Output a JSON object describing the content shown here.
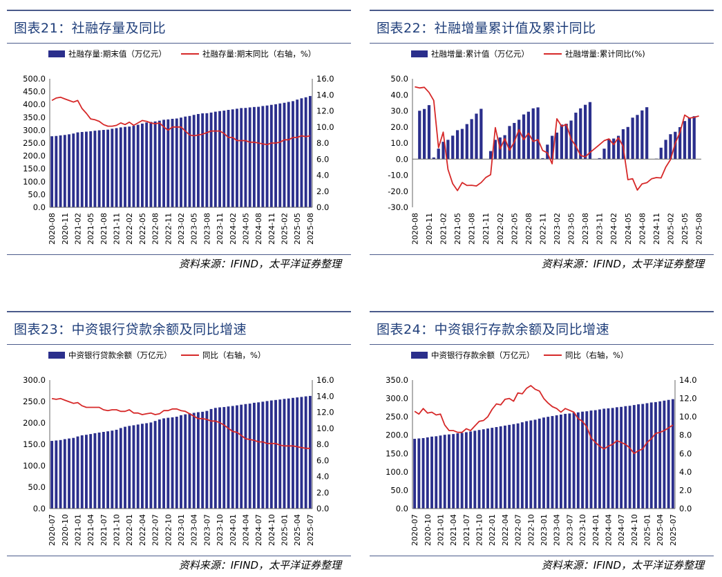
{
  "page": {
    "source_label": "资料来源：IFIND，太平洋证券整理"
  },
  "chart_data": [
    {
      "id": "fig21",
      "title": "图表21：社融存量及同比",
      "type": "bar+line",
      "legend": {
        "bar": "社融存量:期末值（万亿元）",
        "line": "社融存量:期末同比（右轴，%）"
      },
      "left_axis": {
        "min": 0,
        "max": 500,
        "step": 50,
        "decimals": 1
      },
      "right_axis": {
        "min": 0,
        "max": 16,
        "step": 2,
        "decimals": 1
      },
      "x_start": "2020-08",
      "n": 61,
      "tick_labels": [
        "2020-08",
        "2020-11",
        "2021-02",
        "2021-05",
        "2021-08",
        "2021-11",
        "2022-02",
        "2022-05",
        "2022-08",
        "2022-11",
        "2023-02",
        "2023-05",
        "2023-08",
        "2023-11",
        "2024-02",
        "2024-05",
        "2024-08",
        "2024-11",
        "2025-02",
        "2025-05",
        "2025-08"
      ],
      "bar_values": [
        276.4,
        277.6,
        279.8,
        281.5,
        284,
        287,
        291.5,
        293,
        294.3,
        296,
        298,
        299.5,
        301,
        302.1,
        305.6,
        308,
        310.8,
        312.9,
        314.1,
        317,
        321,
        325.6,
        330,
        332.1,
        334,
        337,
        340.6,
        342,
        344.2,
        345.5,
        349,
        353,
        355.3,
        359.5,
        363,
        365.5,
        366,
        368.6,
        372,
        374.3,
        376.2,
        379,
        381,
        383.5,
        386,
        386.6,
        388.6,
        390.2,
        391,
        394,
        396,
        398.6,
        401,
        404,
        406.6,
        410,
        413,
        419,
        424,
        428,
        433
      ],
      "line_values": [
        13.3,
        13.6,
        13.7,
        13.5,
        13.3,
        13.1,
        13.3,
        12.3,
        11.7,
        11,
        10.9,
        10.7,
        10.3,
        10.1,
        10.1,
        10.2,
        10.5,
        10.3,
        10.6,
        10.2,
        10.5,
        10.8,
        10.7,
        10.5,
        10.4,
        10.5,
        10,
        9.6,
        10,
        10,
        10,
        9.5,
        9,
        8.9,
        9,
        9.1,
        9.3,
        9.5,
        9.5,
        9.5,
        9.2,
        8.7,
        8.7,
        8.3,
        8.3,
        8.3,
        8.1,
        8.1,
        8,
        7.9,
        7.8,
        8,
        8,
        8.1,
        8.4,
        8.4,
        8.7,
        8.7,
        8.9,
        8.8,
        8.9
      ]
    },
    {
      "id": "fig22",
      "title": "图表22：社融增量累计值及累计同比",
      "type": "bar+line",
      "legend": {
        "bar": "社融增量:累计值（万亿元）",
        "line": "社融增量:累计同比(%)"
      },
      "left_axis": {
        "min": -30,
        "max": 50,
        "step": 10,
        "decimals": 1
      },
      "x_start": "2020-08",
      "n": 61,
      "tick_labels": [
        "2020-08",
        "2020-11",
        "2021-02",
        "2021-05",
        "2021-08",
        "2021-11",
        "2022-02",
        "2022-05",
        "2022-08",
        "2022-11",
        "2023-02",
        "2023-05",
        "2023-08",
        "2023-11",
        "2024-02",
        "2024-05",
        "2024-08",
        "2024-11",
        "2025-02",
        "2025-05",
        "2025-08"
      ],
      "bar_values": [
        0,
        30.1,
        31.2,
        33.6,
        1,
        6.5,
        10.8,
        12,
        14.6,
        18,
        18.8,
        21.8,
        24.9,
        28.3,
        31.3,
        0,
        5,
        12,
        13.5,
        14.9,
        20.6,
        22.5,
        24.5,
        27.8,
        29.5,
        31.6,
        32.2,
        0.6,
        9,
        14.5,
        16.5,
        21.5,
        22,
        24,
        28.9,
        31.6,
        33.8,
        35.5,
        0,
        0.6,
        6.5,
        12.5,
        12.8,
        14.5,
        18.6,
        20,
        25.8,
        27.5,
        30.3,
        32.3,
        0,
        0.3,
        7.1,
        12,
        15.5,
        17,
        19.9,
        23.7,
        25.9,
        26.7,
        0
      ],
      "line_values": [
        45,
        44.3,
        44.7,
        41.5,
        36.5,
        7.1,
        16.8,
        -6.4,
        -15.3,
        -19.6,
        -14.6,
        -16.4,
        -16.3,
        -16.7,
        -14.6,
        -11.4,
        -9.7,
        19.6,
        6.2,
        12.8,
        5.5,
        10.6,
        18.3,
        12.1,
        16.1,
        11,
        12.2,
        5.4,
        3.9,
        -2.9,
        25.1,
        20.4,
        21.6,
        12.4,
        8.2,
        2.3,
        1.4,
        4.2,
        6.5,
        9,
        11.5,
        12.6,
        9,
        13.3,
        7.9,
        -12.8,
        -12.2,
        -19.3,
        -15.4,
        -14.7,
        -12.3,
        -11.5,
        -11.7,
        -5,
        -0.3,
        9.8,
        16.7,
        27.4,
        25.5,
        26,
        26.8
      ]
    },
    {
      "id": "fig23",
      "title": "图表23：中资银行贷款余额及同比增速",
      "type": "bar+line",
      "legend": {
        "bar": "中资银行贷款余额（万亿元）",
        "line": "同比（右轴，%）"
      },
      "left_axis": {
        "min": 0,
        "max": 300,
        "step": 50,
        "decimals": 1
      },
      "right_axis": {
        "min": 0,
        "max": 16,
        "step": 2,
        "decimals": 1
      },
      "x_start": "2020-07",
      "n": 61,
      "tick_labels": [
        "2020-07",
        "2020-10",
        "2021-01",
        "2021-04",
        "2021-07",
        "2021-10",
        "2022-01",
        "2022-04",
        "2022-07",
        "2022-10",
        "2023-01",
        "2023-04",
        "2023-07",
        "2023-10",
        "2024-01",
        "2024-04",
        "2024-07",
        "2024-10",
        "2025-01",
        "2025-04",
        "2025-07"
      ],
      "bar_values": [
        158,
        159,
        160,
        162.1,
        163.6,
        165,
        168.4,
        171,
        172.3,
        174,
        176,
        177.5,
        179,
        180.4,
        182,
        184,
        188,
        191,
        193,
        194.5,
        196.2,
        198,
        199.3,
        201,
        204.5,
        208,
        210.6,
        212,
        213,
        214.5,
        218,
        220,
        222.4,
        223.5,
        225,
        226,
        228,
        232.4,
        235,
        236.3,
        237,
        238.4,
        239.5,
        241,
        242.5,
        244,
        245,
        247,
        248,
        249.5,
        251,
        252.4,
        253.5,
        254.6,
        256,
        257,
        258.4,
        259.5,
        260.6,
        262,
        263
      ],
      "line_values": [
        13.7,
        13.6,
        13.7,
        13.5,
        13.3,
        13.1,
        13.2,
        12.8,
        12.6,
        12.6,
        12.6,
        12.6,
        12.3,
        12.2,
        12.3,
        12.3,
        12.1,
        12.1,
        12.3,
        11.9,
        11.9,
        11.7,
        11.8,
        11.9,
        11.7,
        11.8,
        12.2,
        12.2,
        12.4,
        12.4,
        12.2,
        12.1,
        11.8,
        11.5,
        11.2,
        11.2,
        11.1,
        10.9,
        10.9,
        10.7,
        10.4,
        10,
        9.6,
        9.5,
        9.1,
        8.7,
        8.6,
        8.5,
        8.3,
        8.3,
        8.1,
        8.1,
        8.1,
        7.9,
        7.8,
        7.8,
        7.8,
        7.7,
        7.6,
        7.5,
        7.5
      ]
    },
    {
      "id": "fig24",
      "title": "图表24：中资银行存款余额及同比增速",
      "type": "bar+line",
      "legend": {
        "bar": "中资银行存款余额（万亿元）",
        "line": "同比（右轴，%）"
      },
      "left_axis": {
        "min": 0,
        "max": 350,
        "step": 50,
        "decimals": 1
      },
      "right_axis": {
        "min": 0,
        "max": 14,
        "step": 2,
        "decimals": 1
      },
      "x_start": "2020-07",
      "n": 61,
      "tick_labels": [
        "2020-07",
        "2020-10",
        "2021-01",
        "2021-04",
        "2021-07",
        "2021-10",
        "2022-01",
        "2022-04",
        "2022-07",
        "2022-10",
        "2023-01",
        "2023-04",
        "2023-07",
        "2023-10",
        "2024-01",
        "2024-04",
        "2024-07",
        "2024-10",
        "2025-01",
        "2025-04",
        "2025-07"
      ],
      "bar_values": [
        190,
        191,
        192,
        194,
        196,
        197,
        199,
        201,
        202,
        203,
        205,
        206,
        208,
        210,
        212,
        214,
        216,
        218,
        220,
        222,
        224,
        226,
        228,
        230,
        232,
        235,
        238,
        240,
        242,
        245,
        248,
        250,
        252,
        254,
        256,
        258,
        259,
        261,
        262,
        264,
        265,
        267,
        268,
        270,
        272,
        273,
        274,
        276,
        277,
        279,
        280,
        282,
        284,
        285,
        287,
        289,
        290,
        292,
        294,
        296,
        298
      ],
      "line_values": [
        10.6,
        10.3,
        10.9,
        10.4,
        10.5,
        10.2,
        10.3,
        9.1,
        8.5,
        8.5,
        8.3,
        8.3,
        8.7,
        8.5,
        9,
        9.5,
        9.6,
        10,
        10.8,
        11.4,
        11.3,
        11.9,
        12,
        11.7,
        12.6,
        12.5,
        13.1,
        13.4,
        13,
        12.8,
        12,
        11.5,
        11.1,
        10.9,
        10.5,
        10.9,
        10.7,
        10.5,
        9.8,
        9.5,
        8.9,
        7.7,
        7.2,
        6.8,
        6.5,
        6.8,
        7,
        7.4,
        7.2,
        7,
        6.6,
        6,
        6.3,
        6.5,
        7.2,
        7.6,
        8.2,
        8.3,
        8.5,
        8.8,
        9.1
      ]
    }
  ]
}
